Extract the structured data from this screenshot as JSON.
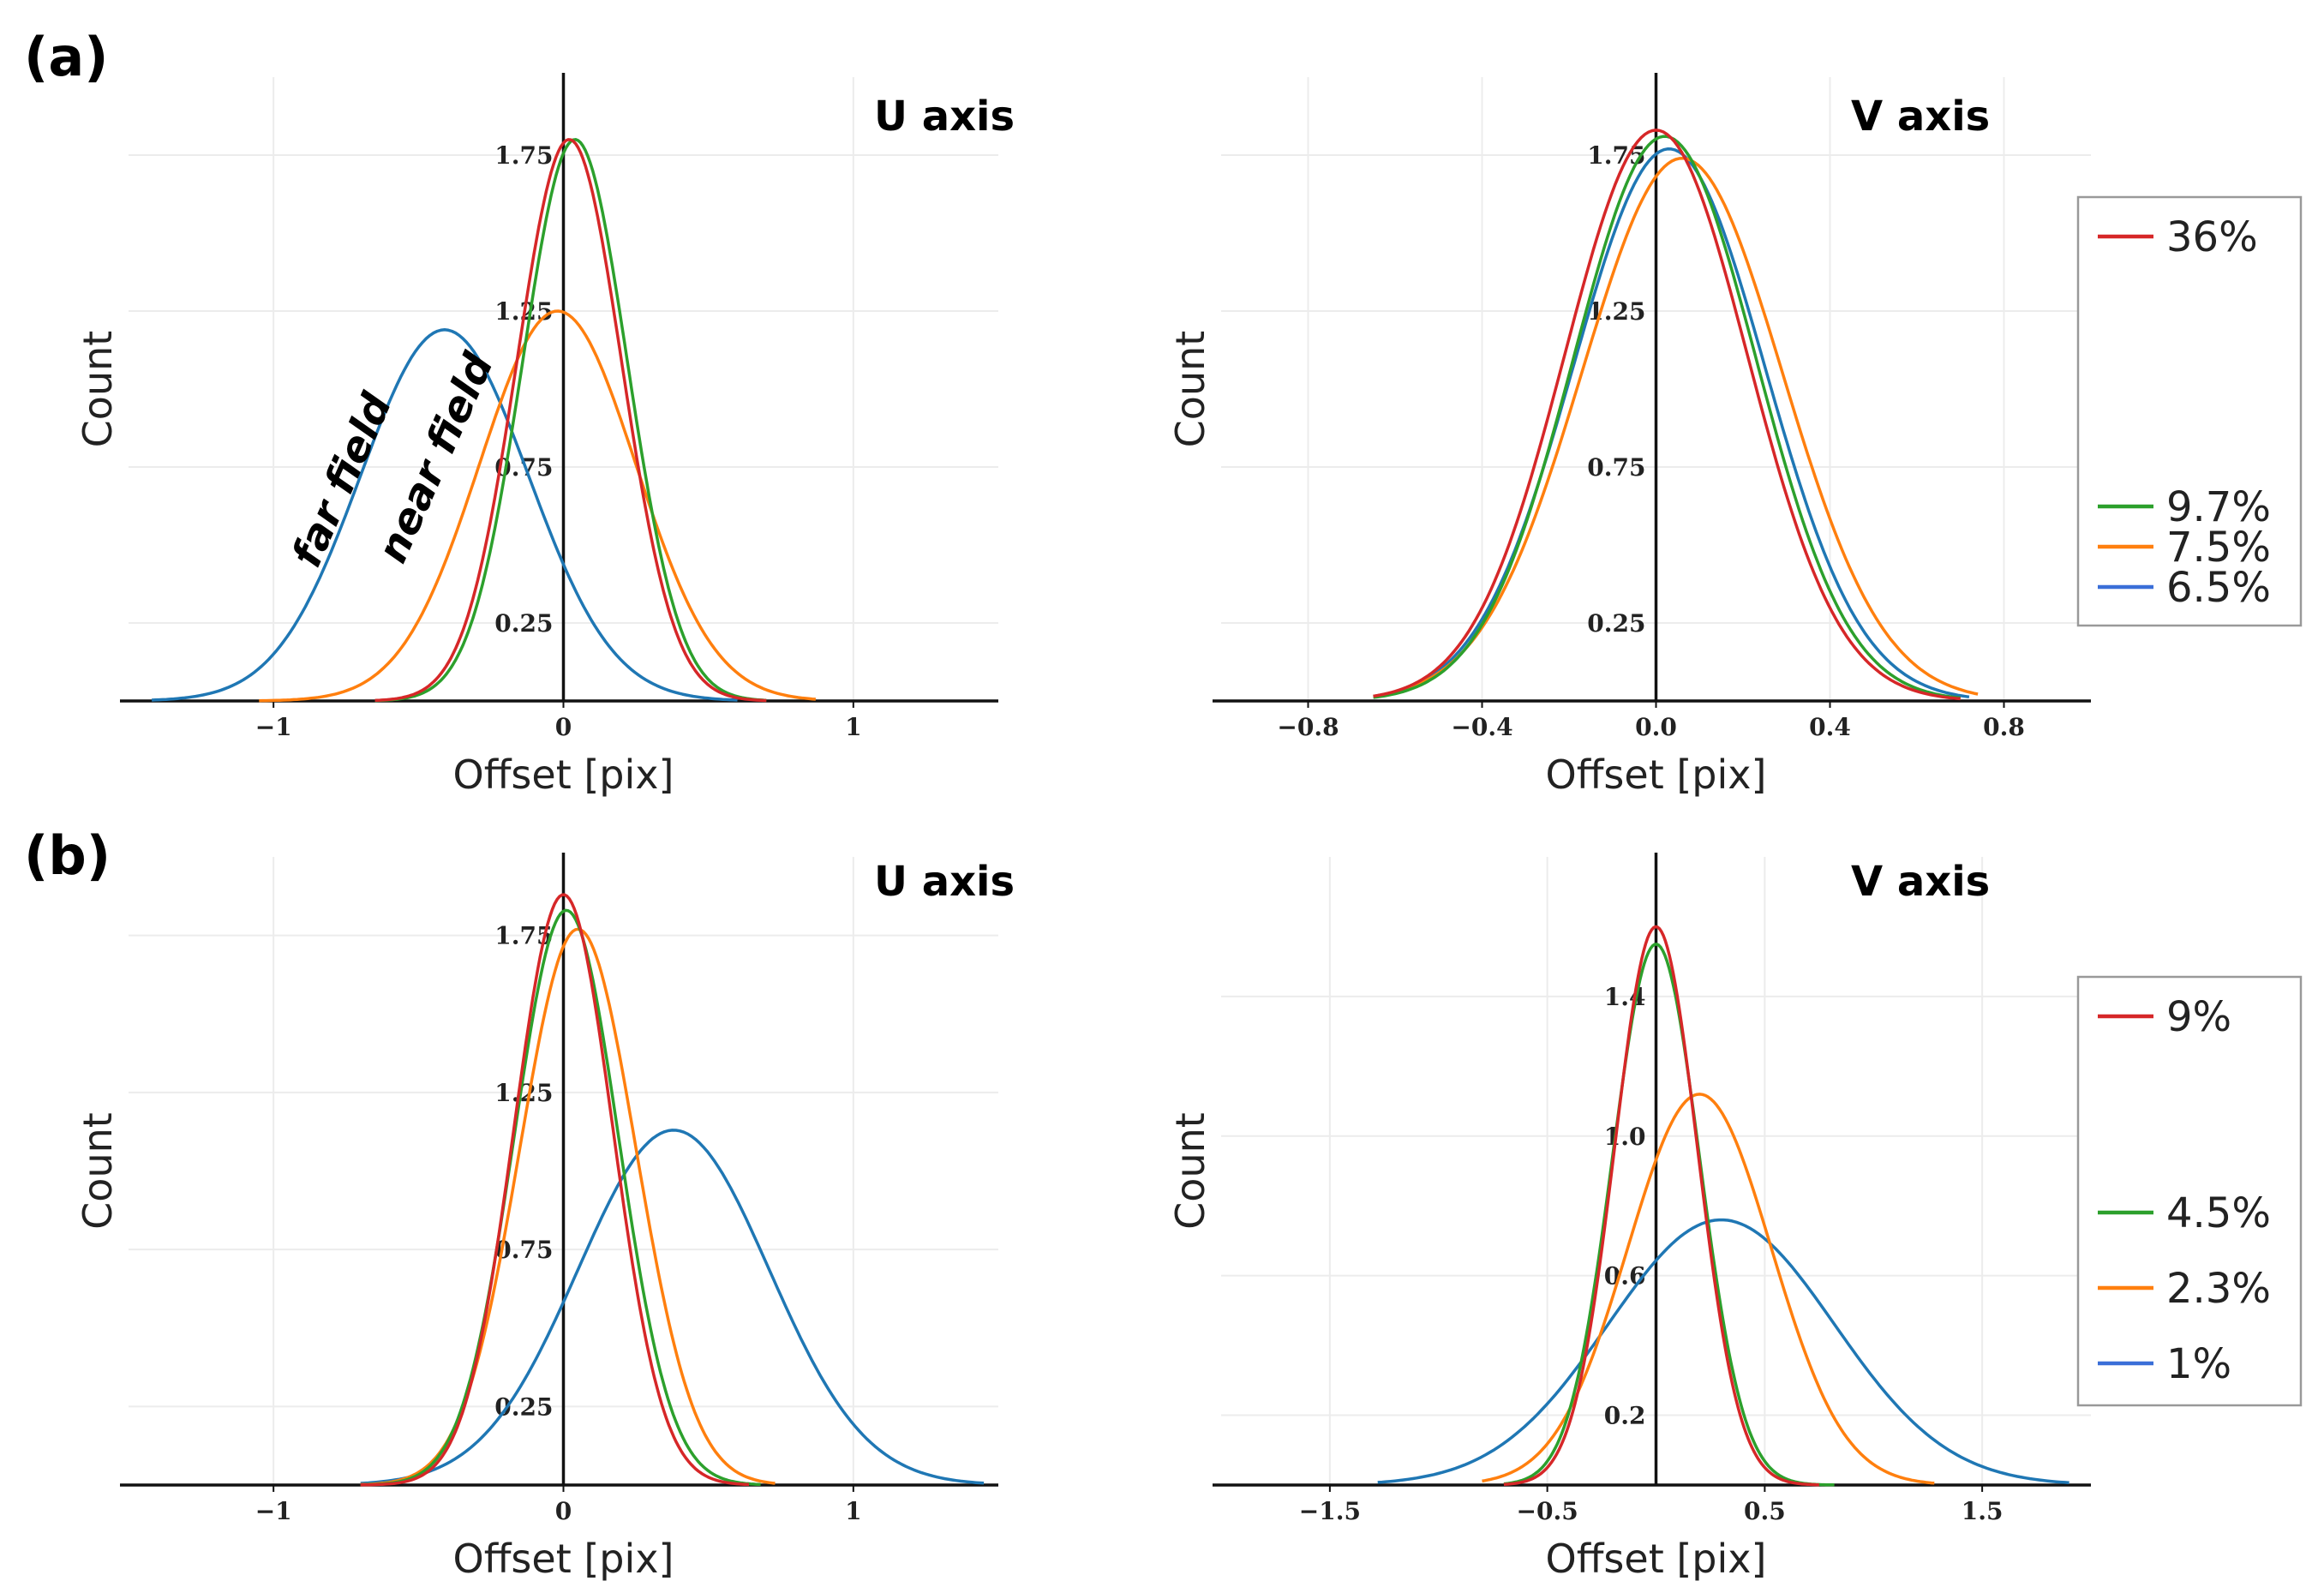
{
  "panels": [
    {
      "label": "(a)"
    },
    {
      "label": "(b)"
    }
  ],
  "legends": [
    {
      "entries": [
        {
          "label": "36%",
          "color": "#d62728"
        },
        {
          "label": "9.7%",
          "color": "#2ca02c"
        },
        {
          "label": "7.5%",
          "color": "#ff7f0e"
        },
        {
          "label": "6.5%",
          "color": "#1f77b4"
        }
      ]
    },
    {
      "entries": [
        {
          "label": "9%",
          "color": "#d62728"
        },
        {
          "label": "4.5%",
          "color": "#2ca02c"
        },
        {
          "label": "2.3%",
          "color": "#ff7f0e"
        },
        {
          "label": "1%",
          "color": "#1f77b4"
        }
      ]
    }
  ],
  "chart_data": [
    {
      "id": "a-u",
      "type": "line",
      "title": "U axis",
      "xlabel": "Offset [pix]",
      "ylabel": "Count",
      "xlim": [
        -1.5,
        1.5
      ],
      "ylim": [
        0,
        2.0
      ],
      "xticks": [
        -1,
        0,
        1
      ],
      "xtick_labels": [
        "−1",
        "0",
        "1"
      ],
      "yticks": [
        0.25,
        0.75,
        1.25,
        1.75
      ],
      "ytick_labels": [
        "0.25",
        "0.75",
        "1.25",
        "1.75"
      ],
      "grid": true,
      "annotations": [
        "far field",
        "near field"
      ],
      "series": [
        {
          "legend_index": 3,
          "color": "#1f77b4",
          "mu": -0.41,
          "amp": 1.19,
          "sigma": 0.29,
          "range": [
            -1.42,
            0.6
          ]
        },
        {
          "legend_index": 2,
          "color": "#ff7f0e",
          "mu": -0.02,
          "amp": 1.25,
          "sigma": 0.27,
          "range": [
            -1.05,
            0.87
          ]
        },
        {
          "legend_index": 1,
          "color": "#2ca02c",
          "mu": 0.04,
          "amp": 1.8,
          "sigma": 0.18,
          "range": [
            -0.65,
            0.7
          ]
        },
        {
          "legend_index": 0,
          "color": "#d62728",
          "mu": 0.02,
          "amp": 1.8,
          "sigma": 0.18,
          "range": [
            -0.65,
            0.7
          ]
        }
      ]
    },
    {
      "id": "a-v",
      "type": "line",
      "title": "V axis",
      "xlabel": "Offset [pix]",
      "ylabel": "Count",
      "xlim": [
        -1.0,
        1.0
      ],
      "ylim": [
        0,
        2.0
      ],
      "xticks": [
        -0.8,
        -0.4,
        0.0,
        0.4,
        0.8
      ],
      "xtick_labels": [
        "−0.8",
        "−0.4",
        "0.0",
        "0.4",
        "0.8"
      ],
      "yticks": [
        0.25,
        0.75,
        1.25,
        1.75
      ],
      "ytick_labels": [
        "0.25",
        "0.75",
        "1.25",
        "1.75"
      ],
      "grid": true,
      "series": [
        {
          "legend_index": 3,
          "color": "#1f77b4",
          "mu": 0.03,
          "amp": 1.77,
          "sigma": 0.22,
          "range": [
            -0.65,
            0.72
          ]
        },
        {
          "legend_index": 2,
          "color": "#ff7f0e",
          "mu": 0.06,
          "amp": 1.74,
          "sigma": 0.23,
          "range": [
            -0.65,
            0.74
          ]
        },
        {
          "legend_index": 1,
          "color": "#2ca02c",
          "mu": 0.02,
          "amp": 1.81,
          "sigma": 0.21,
          "range": [
            -0.65,
            0.7
          ]
        },
        {
          "legend_index": 0,
          "color": "#d62728",
          "mu": 0.0,
          "amp": 1.83,
          "sigma": 0.21,
          "range": [
            -0.65,
            0.7
          ]
        }
      ]
    },
    {
      "id": "b-u",
      "type": "line",
      "title": "U axis",
      "xlabel": "Offset [pix]",
      "ylabel": "Count",
      "xlim": [
        -1.5,
        1.5
      ],
      "ylim": [
        0,
        2.0
      ],
      "xticks": [
        -1,
        0,
        1
      ],
      "xtick_labels": [
        "−1",
        "0",
        "1"
      ],
      "yticks": [
        0.25,
        0.75,
        1.25,
        1.75
      ],
      "ytick_labels": [
        "0.25",
        "0.75",
        "1.25",
        "1.75"
      ],
      "grid": true,
      "series": [
        {
          "legend_index": 3,
          "color": "#1f77b4",
          "mu": 0.38,
          "amp": 1.13,
          "sigma": 0.33,
          "range": [
            -0.7,
            1.45
          ]
        },
        {
          "legend_index": 2,
          "color": "#ff7f0e",
          "mu": 0.05,
          "amp": 1.77,
          "sigma": 0.2,
          "range": [
            -0.7,
            0.73
          ]
        },
        {
          "legend_index": 1,
          "color": "#2ca02c",
          "mu": 0.01,
          "amp": 1.83,
          "sigma": 0.18,
          "range": [
            -0.7,
            0.68
          ]
        },
        {
          "legend_index": 0,
          "color": "#d62728",
          "mu": 0.0,
          "amp": 1.88,
          "sigma": 0.17,
          "range": [
            -0.7,
            0.64
          ]
        }
      ]
    },
    {
      "id": "b-v",
      "type": "line",
      "title": "V axis",
      "xlabel": "Offset [pix]",
      "ylabel": "Count",
      "xlim": [
        -2.0,
        2.0
      ],
      "ylim": [
        0,
        1.8
      ],
      "xticks": [
        -1.5,
        -0.5,
        0.5,
        1.5
      ],
      "xtick_labels": [
        "−1.5",
        "−0.5",
        "0.5",
        "1.5"
      ],
      "yticks": [
        0.2,
        0.6,
        1.0,
        1.4
      ],
      "ytick_labels": [
        "0.2",
        "0.6",
        "1.0",
        "1.4"
      ],
      "grid": true,
      "series": [
        {
          "legend_index": 3,
          "color": "#1f77b4",
          "mu": 0.3,
          "amp": 0.76,
          "sigma": 0.52,
          "range": [
            -1.28,
            1.9
          ]
        },
        {
          "legend_index": 2,
          "color": "#ff7f0e",
          "mu": 0.2,
          "amp": 1.12,
          "sigma": 0.33,
          "range": [
            -0.8,
            1.28
          ]
        },
        {
          "legend_index": 1,
          "color": "#2ca02c",
          "mu": 0.0,
          "amp": 1.55,
          "sigma": 0.2,
          "range": [
            -0.7,
            0.82
          ]
        },
        {
          "legend_index": 0,
          "color": "#d62728",
          "mu": 0.0,
          "amp": 1.6,
          "sigma": 0.19,
          "range": [
            -0.7,
            0.75
          ]
        }
      ]
    }
  ]
}
